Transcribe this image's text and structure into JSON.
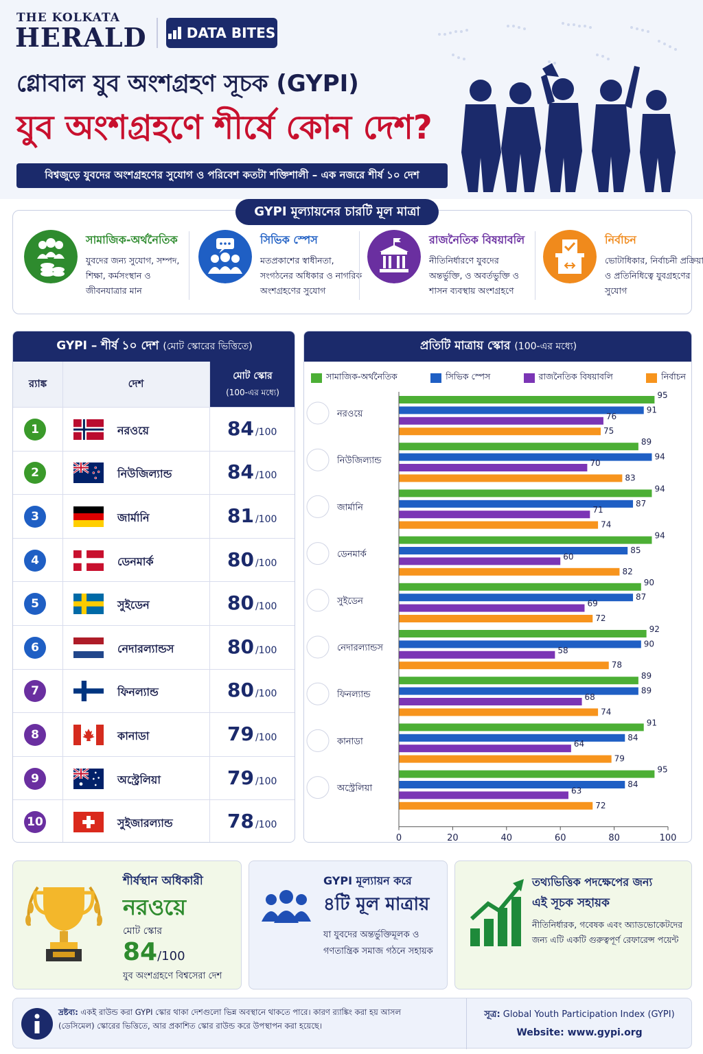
{
  "header": {
    "publication_small": "THE KOLKATA",
    "publication_big": "HERALD",
    "badge": "DATA BITES",
    "title_line1": "গ্লোবাল যুব অংশগ্রহণ সূচক (GYPI)",
    "title_line2": "যুব অংশগ্রহণে শীর্ষে কোন দেশ?",
    "subtitle": "বিশ্বজুড়ে যুবদের অংশগ্রহণের সুযোগ ও পরিবেশ কতটা শক্তিশালী – এক নজরে শীর্ষ ১০ দেশ"
  },
  "dimensions": {
    "heading": "GYPI মূল্যায়নের চারটি মূল মাত্রা",
    "items": [
      {
        "title": "সামাজিক-অর্থনৈতিক",
        "desc": "যুবদের জন্য সুযোগ, সম্পদ, শিক্ষা, কর্মসংস্থান ও জীবনযাত্রার মান",
        "color": "#2e8b2e",
        "icon": "people-coins-icon"
      },
      {
        "title": "সিভিক স্পেস",
        "desc": "মতপ্রকাশের স্বাধীনতা, সংগঠনের অধিকার ও নাগরিক অংশগ্রহণের সুযোগ",
        "color": "#1f5fc4",
        "icon": "group-speech-icon"
      },
      {
        "title": "রাজনৈতিক বিষয়াবলি",
        "desc": "নীতিনির্ধারণে যুবদের অন্তর্ভুক্তি, ও অবর্তভুক্তি ও শাসন ব্যবস্থায় অংশগ্রহণে",
        "color": "#6a2fa0",
        "icon": "government-building-icon"
      },
      {
        "title": "নির্বাচন",
        "desc": "ভোটাধিকার, নির্বাচনী প্রক্রিয়া ও প্রতিনিধিত্বে যুবগ্রহণের সুযোগ",
        "color": "#f08a1c",
        "icon": "ballot-box-icon"
      }
    ]
  },
  "table": {
    "heading": "GYPI – শীর্ষ ১০ দেশ",
    "heading_small": "(মোট স্কোরের ভিত্তিতে)",
    "col_rank": "র‍্যাঙ্ক",
    "col_country": "দেশ",
    "col_score": "মোট স্কোর",
    "col_score_sub": "(100-এর মধ্যে)",
    "out_of": "/100",
    "rows": [
      {
        "rank": "1",
        "country": "নরওয়ে",
        "score": "84",
        "rank_color": "#3a9a2a",
        "flag": "norway"
      },
      {
        "rank": "2",
        "country": "নিউজিল্যান্ড",
        "score": "84",
        "rank_color": "#3a9a2a",
        "flag": "newzealand"
      },
      {
        "rank": "3",
        "country": "জার্মানি",
        "score": "81",
        "rank_color": "#1f5fc4",
        "flag": "germany"
      },
      {
        "rank": "4",
        "country": "ডেনমার্ক",
        "score": "80",
        "rank_color": "#1f5fc4",
        "flag": "denmark"
      },
      {
        "rank": "5",
        "country": "সুইডেন",
        "score": "80",
        "rank_color": "#1f5fc4",
        "flag": "sweden"
      },
      {
        "rank": "6",
        "country": "নেদারল্যান্ডস",
        "score": "80",
        "rank_color": "#1f5fc4",
        "flag": "netherlands"
      },
      {
        "rank": "7",
        "country": "ফিনল্যান্ড",
        "score": "80",
        "rank_color": "#6a2fa0",
        "flag": "finland"
      },
      {
        "rank": "8",
        "country": "কানাডা",
        "score": "79",
        "rank_color": "#6a2fa0",
        "flag": "canada"
      },
      {
        "rank": "9",
        "country": "অস্ট্রেলিয়া",
        "score": "79",
        "rank_color": "#6a2fa0",
        "flag": "australia"
      },
      {
        "rank": "10",
        "country": "সুইজারল্যান্ড",
        "score": "78",
        "rank_color": "#6a2fa0",
        "flag": "switzerland"
      }
    ]
  },
  "chart_data": {
    "type": "bar",
    "orientation": "horizontal",
    "title": "প্রতিটি মাত্রায় স্কোর",
    "title_small": "(100-এর মধ্যে)",
    "categories": [
      "নরওয়ে",
      "নিউজিল্যান্ড",
      "জার্মানি",
      "ডেনমার্ক",
      "সুইডেন",
      "নেদারল্যান্ডস",
      "ফিনল্যান্ড",
      "কানাডা",
      "অস্ট্রেলিয়া"
    ],
    "flags": [
      "norway",
      "newzealand",
      "germany",
      "denmark",
      "sweden",
      "netherlands",
      "finland",
      "canada",
      "australia"
    ],
    "series": [
      {
        "name": "সামাজিক-অর্থনৈতিক",
        "color": "#4caf35",
        "values": [
          95,
          89,
          94,
          94,
          90,
          92,
          89,
          91,
          95
        ]
      },
      {
        "name": "সিভিক স্পেস",
        "color": "#1f5fc4",
        "values": [
          91,
          94,
          87,
          85,
          87,
          90,
          89,
          84,
          84
        ]
      },
      {
        "name": "রাজনৈতিক বিষয়াবলি",
        "color": "#7b35b5",
        "values": [
          76,
          70,
          71,
          60,
          69,
          58,
          68,
          64,
          63
        ]
      },
      {
        "name": "নির্বাচন",
        "color": "#f7941d",
        "values": [
          75,
          83,
          74,
          82,
          72,
          78,
          74,
          79,
          72
        ]
      }
    ],
    "xlim": [
      0,
      100
    ],
    "xticks": [
      0,
      20,
      40,
      60,
      80,
      100
    ],
    "legend_position": "top"
  },
  "cards": {
    "leader": {
      "label": "শীর্ষস্থান অধিকারী",
      "country": "নরওয়ে",
      "score_label": "মোট স্কোর",
      "score": "84",
      "out_of": "/100",
      "caption": "যুব অংশগ্রহণে বিশ্বসেরা দেশ"
    },
    "dimensions": {
      "line1": "GYPI মূল্যায়ন করে",
      "line2": "৪টি মূল মাত্রায়",
      "desc": "যা যুবদের অন্তর্ভুক্তিমূলক ও গণতান্ত্রিক সমাজ গঠনে সহায়ক"
    },
    "useful": {
      "line1": "তথ্যভিত্তিক পদক্ষেপের জন্য",
      "line2": "এই সূচক সহায়ক",
      "desc": "নীতিনির্ধারক, গবেষক এবং অ্যাডভোকেটদের জন্য এটি একটি গুরুত্বপূর্ণ রেফারেন্স পয়েন্ট"
    }
  },
  "footer": {
    "note_label": "দ্রষ্টব্য:",
    "note": "একই রাউন্ড করা GYPI স্কোর থাকা দেশগুলো ভিন্ন অবস্থানে থাকতে পারে। কারণ র‍্যাঙ্কিং করা হয় আসল (ডেসিমেল) স্কোরের ভিত্তিতে, আর প্রকাশিত স্কোর রাউন্ড করে উপস্থাপন করা হয়েছে।",
    "source_label": "সূত্র:",
    "source": "Global Youth Participation Index (GYPI)",
    "website_label": "Website:",
    "website": "www.gypi.org"
  }
}
